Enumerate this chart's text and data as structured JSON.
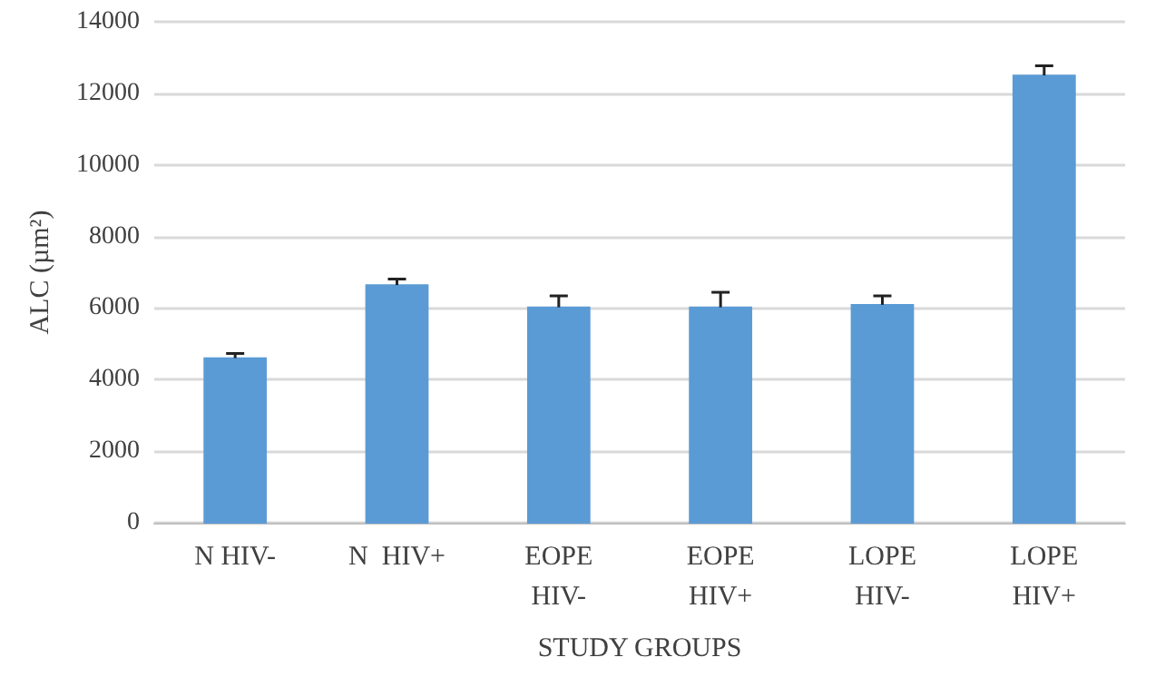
{
  "chart_data": {
    "type": "bar",
    "xlabel": "STUDY GROUPS",
    "ylabel": "ALC (µm²)",
    "categories": [
      "N HIV-",
      "N  HIV+",
      "EOPE\nHIV-",
      "EOPE\nHIV+",
      "LOPE\nHIV-",
      "LOPE\nHIV+"
    ],
    "values": [
      4600,
      6640,
      6020,
      6020,
      6090,
      12500
    ],
    "errors": [
      [
        4600,
        4730
      ],
      [
        6640,
        6810
      ],
      [
        6020,
        6340
      ],
      [
        6020,
        6440
      ],
      [
        6090,
        6340
      ],
      [
        12500,
        12770
      ]
    ],
    "color": "#5b9bd5",
    "ylim": [
      0,
      14000
    ],
    "yticks": [
      0,
      2000,
      4000,
      6000,
      8000,
      10000,
      12000,
      14000
    ],
    "grid": "y"
  }
}
